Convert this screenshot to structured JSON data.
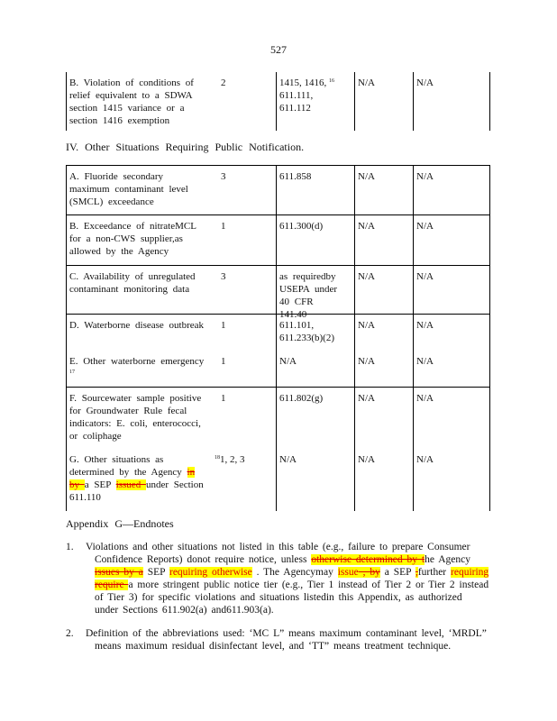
{
  "page_number": "527",
  "top_table": [
    {
      "desc": "B. Violation of conditions of relief equivalent to a SDWA section 1415 variance or a section 1416 exemption",
      "tier": "2",
      "tier_note": "",
      "citation": "1415, 1416,",
      "citation_note": "16",
      "citation_rest": "611.111, 611.112",
      "col4": "N/A",
      "col5": "N/A"
    }
  ],
  "section_heading": "IV. Other Situations Requiring Public Notification.",
  "main_table": [
    {
      "desc": "A. Fluoride secondary maximum contaminant level (SMCL) exceedance",
      "tier": "3",
      "citation": "611.858",
      "col4": "N/A",
      "col5": "N/A"
    },
    {
      "desc": "B. Exceedance of nitrateMCL for a non-CWS supplier,as allowed by the Agency",
      "tier": "1",
      "citation": "611.300(d)",
      "col4": "N/A",
      "col5": "N/A"
    },
    {
      "desc": "C. Availability of unregulated contaminant monitoring data",
      "tier": "3",
      "citation": "as requiredby USEPA under 40 CFR 141.40",
      "col4": "N/A",
      "col5": "N/A"
    },
    {
      "desc": "D. Waterborne disease outbreak",
      "tier": "1",
      "citation": "611.101, 611.233(b)(2)",
      "col4": "N/A",
      "col5": "N/A"
    },
    {
      "desc": "E. Other waterborne emergency",
      "desc_note": "17",
      "tier": "1",
      "citation": "N/A",
      "col4": "N/A",
      "col5": "N/A"
    },
    {
      "desc": "F. Sourcewater sample positive for Groundwater Rule fecal indicators: E. coli, enterococci, or coliphage",
      "tier": "1",
      "citation": "611.802(g)",
      "col4": "N/A",
      "col5": "N/A"
    },
    {
      "desc_segments": [
        {
          "t": "n",
          "s": "G. Other situations as determined by the Agency "
        },
        {
          "t": "d",
          "s": "in by "
        },
        {
          "t": "n",
          "s": " a SEP "
        },
        {
          "t": "d",
          "s": "issued "
        },
        {
          "t": "n",
          "s": " under Section 611.110"
        }
      ],
      "tier_note": "18",
      "tier": "1, 2, 3",
      "citation": "N/A",
      "col4": "N/A",
      "col5": "N/A"
    }
  ],
  "endnotes_heading": "Appendix G—Endnotes",
  "endnotes": [
    {
      "num": "1.",
      "segments": [
        {
          "t": "n",
          "s": "Violations and other situations not listed in this table (e.g., failure to prepare Consumer Confidence Reports) donot require notice, unless "
        },
        {
          "t": "d",
          "s": "otherwise determined by t"
        },
        {
          "t": "n",
          "s": "he Agency "
        },
        {
          "t": "d",
          "s": "issues by a"
        },
        {
          "t": "n",
          "s": " SEP "
        },
        {
          "t": "i",
          "s": "requiring otherwise"
        },
        {
          "t": "n",
          "s": " . The Agencymay "
        },
        {
          "t": "i",
          "s": "issue"
        },
        {
          "t": "d",
          "s": " , by"
        },
        {
          "t": "n",
          "s": " a SEP "
        },
        {
          "t": "d",
          "s": ","
        },
        {
          "t": "n",
          "s": "further "
        },
        {
          "t": "i",
          "s": "requiring"
        },
        {
          "t": "n",
          "s": " "
        },
        {
          "t": "d",
          "s": "require "
        },
        {
          "t": "n",
          "s": " a more stringent public notice tier (e.g., Tier 1 instead of Tier 2 or Tier 2 instead of Tier 3) for specific violations and situations listedin this Appendix, as authorized under Sections 611.902(a) and611.903(a)."
        }
      ]
    },
    {
      "num": "2.",
      "segments": [
        {
          "t": "n",
          "s": "Definition of the abbreviations used: ‘MC L” means maximum contaminant level, ‘MRDL” means maximum residual disinfectant level, and ‘TT” means treatment technique."
        }
      ]
    }
  ],
  "colors": {
    "insert_text": "#e00000",
    "highlight": "#ffff00"
  }
}
